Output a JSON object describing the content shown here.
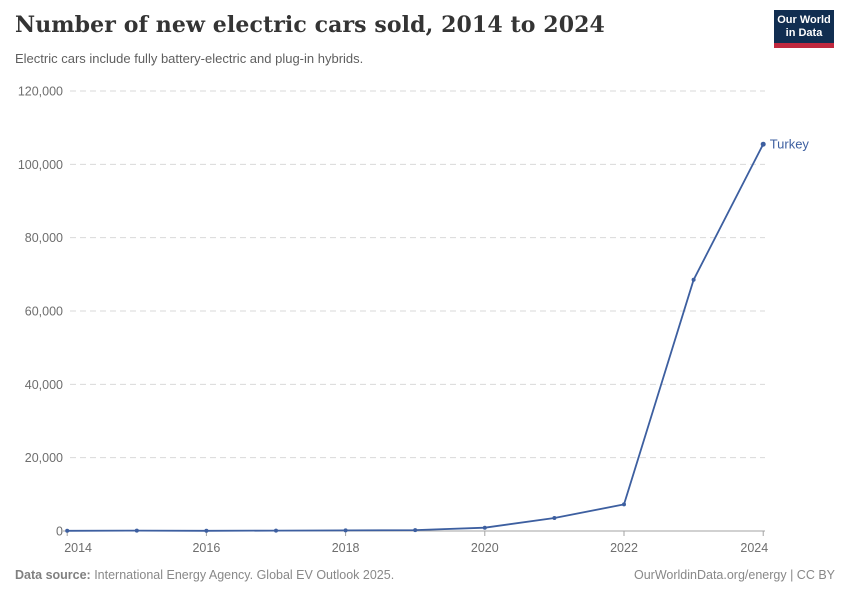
{
  "header": {
    "title": "Number of new electric cars sold, 2014 to 2024",
    "subtitle": "Electric cars include fully battery-electric and plug-in hybrids.",
    "logo": {
      "line1": "Our World",
      "line2": "in Data",
      "bg_color": "#112e51",
      "accent_color": "#c0283e"
    }
  },
  "chart_data": {
    "type": "line",
    "title": "Number of new electric cars sold, 2014 to 2024",
    "subtitle": "Electric cars include fully battery-electric and plug-in hybrids.",
    "xlabel": "",
    "ylabel": "",
    "xlim": [
      2014,
      2024
    ],
    "ylim": [
      0,
      120000
    ],
    "x_ticks": [
      2014,
      2016,
      2018,
      2020,
      2022,
      2024
    ],
    "y_ticks": [
      0,
      20000,
      40000,
      60000,
      80000,
      100000,
      120000
    ],
    "grid": "horizontal-dashed",
    "legend_position": "end-of-line-label",
    "gridline_color": "#d9d9d9",
    "axis_color": "#a3a3a3",
    "tick_label_color": "#6e6e6e",
    "series": [
      {
        "name": "Turkey",
        "color": "#3d5fa0",
        "x": [
          2014,
          2015,
          2016,
          2017,
          2018,
          2019,
          2020,
          2021,
          2022,
          2023,
          2024
        ],
        "values": [
          60,
          120,
          60,
          100,
          160,
          250,
          900,
          3550,
          7250,
          68500,
          105500
        ]
      }
    ]
  },
  "footer": {
    "datasource_label": "Data source:",
    "datasource_text": " International Energy Agency. Global EV Outlook 2025.",
    "credit": "OurWorldinData.org/energy | CC BY"
  }
}
